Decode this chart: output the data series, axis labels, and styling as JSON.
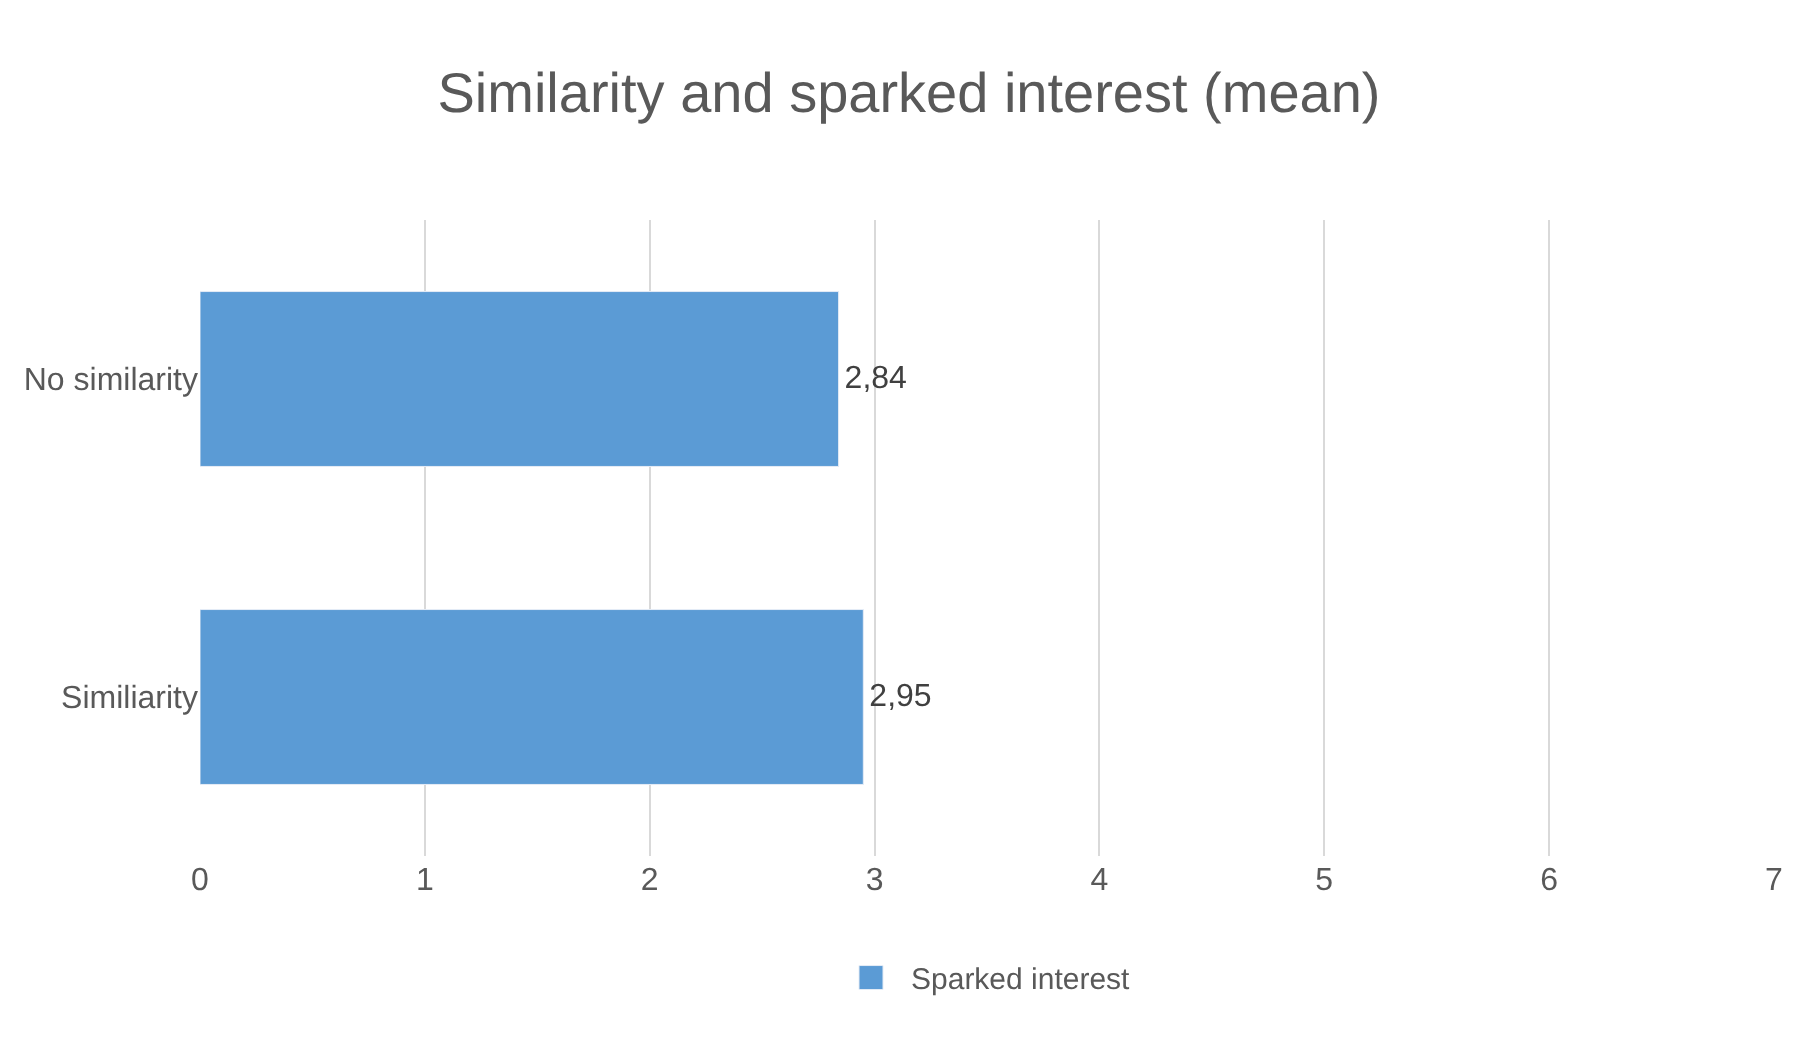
{
  "chart_data": {
    "type": "bar",
    "orientation": "horizontal",
    "title": "Similarity and sparked interest (mean)",
    "categories": [
      "No similarity",
      "Similiarity"
    ],
    "series": [
      {
        "name": "Sparked interest",
        "color": "#5b9bd5",
        "values": [
          2.84,
          2.95
        ],
        "value_labels": [
          "2,84",
          "2,95"
        ]
      }
    ],
    "xlim": [
      0,
      7
    ],
    "xticks": [
      0,
      1,
      2,
      3,
      4,
      5,
      6,
      7
    ],
    "grid": "x",
    "legend": "bottom"
  }
}
